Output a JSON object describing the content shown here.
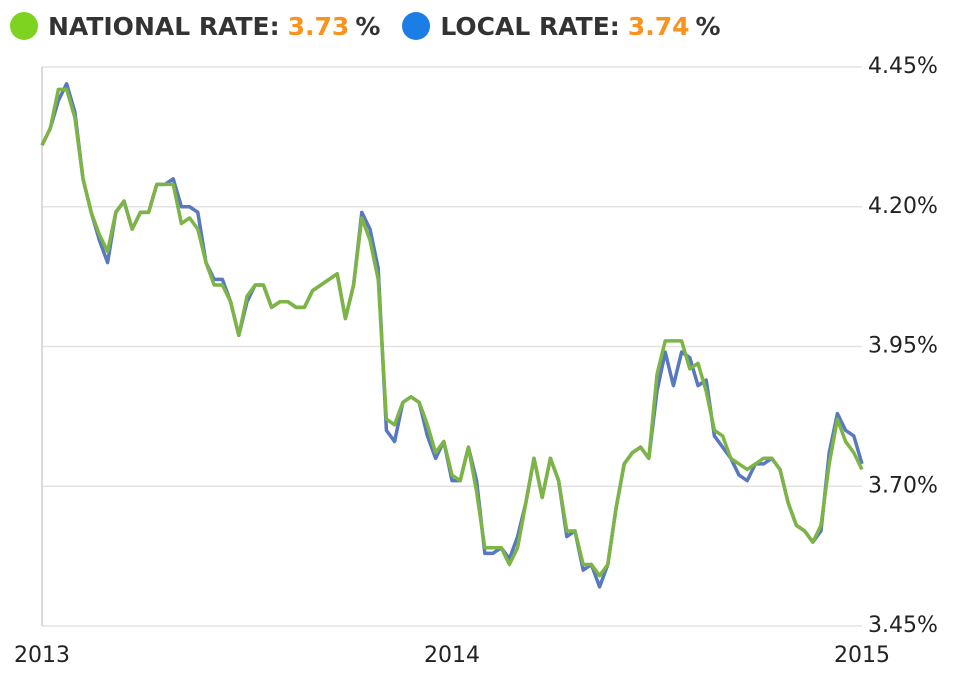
{
  "chart_data": {
    "type": "line",
    "current_unit": "%",
    "current_color": "#f7931e",
    "x": [
      2013,
      2013.02,
      2013.04,
      2013.06,
      2013.08,
      2013.1,
      2013.12,
      2013.14,
      2013.16,
      2013.18,
      2013.2,
      2013.22,
      2013.24,
      2013.26,
      2013.28,
      2013.3,
      2013.32,
      2013.34,
      2013.36,
      2013.38,
      2013.4,
      2013.42,
      2013.44,
      2013.46,
      2013.48,
      2013.5,
      2013.52,
      2013.54,
      2013.56,
      2013.58,
      2013.6,
      2013.62,
      2013.64,
      2013.66,
      2013.68,
      2013.7,
      2013.72,
      2013.74,
      2013.76,
      2013.78,
      2013.8,
      2013.82,
      2013.84,
      2013.86,
      2013.88,
      2013.9,
      2013.92,
      2013.94,
      2013.96,
      2013.98,
      2014,
      2014.02,
      2014.04,
      2014.06,
      2014.08,
      2014.1,
      2014.12,
      2014.14,
      2014.16,
      2014.18,
      2014.2,
      2014.22,
      2014.24,
      2014.26,
      2014.28,
      2014.3,
      2014.32,
      2014.34,
      2014.36,
      2014.38,
      2014.4,
      2014.42,
      2014.44,
      2014.46,
      2014.48,
      2014.5,
      2014.52,
      2014.54,
      2014.56,
      2014.58,
      2014.6,
      2014.62,
      2014.64,
      2014.66,
      2014.68,
      2014.7,
      2014.72,
      2014.74,
      2014.76,
      2014.78,
      2014.8,
      2014.82,
      2014.84,
      2014.86,
      2014.88,
      2014.9,
      2014.92,
      2014.94,
      2014.96,
      2014.98,
      2015
    ],
    "xlim": [
      2013,
      2015
    ],
    "xticks": [
      2013,
      2014,
      2015
    ],
    "ylim": [
      3.45,
      4.45
    ],
    "yticks": [
      {
        "value": 3.45,
        "label": "3.45%"
      },
      {
        "value": 3.7,
        "label": "3.70%"
      },
      {
        "value": 3.95,
        "label": "3.95%"
      },
      {
        "value": 4.2,
        "label": "4.20%"
      },
      {
        "value": 4.45,
        "label": "4.45%"
      }
    ],
    "grid": true,
    "series": [
      {
        "name": "NATIONAL RATE:",
        "color": "#7db544",
        "legend_color": "#7ed321",
        "current": 3.73,
        "values": [
          4.31,
          4.34,
          4.41,
          4.41,
          4.36,
          4.25,
          4.19,
          4.15,
          4.12,
          4.19,
          4.21,
          4.16,
          4.19,
          4.19,
          4.24,
          4.24,
          4.24,
          4.17,
          4.18,
          4.16,
          4.1,
          4.06,
          4.06,
          4.03,
          3.97,
          4.04,
          4.06,
          4.06,
          4.02,
          4.03,
          4.03,
          4.02,
          4.02,
          4.05,
          4.06,
          4.07,
          4.08,
          4.0,
          4.06,
          4.18,
          4.14,
          4.07,
          3.82,
          3.81,
          3.85,
          3.86,
          3.85,
          3.81,
          3.76,
          3.78,
          3.72,
          3.71,
          3.77,
          3.69,
          3.59,
          3.59,
          3.59,
          3.56,
          3.59,
          3.67,
          3.75,
          3.68,
          3.75,
          3.71,
          3.62,
          3.62,
          3.56,
          3.56,
          3.54,
          3.56,
          3.66,
          3.74,
          3.76,
          3.77,
          3.75,
          3.9,
          3.96,
          3.96,
          3.96,
          3.91,
          3.92,
          3.87,
          3.8,
          3.79,
          3.75,
          3.74,
          3.73,
          3.74,
          3.75,
          3.75,
          3.73,
          3.67,
          3.63,
          3.62,
          3.6,
          3.63,
          3.74,
          3.82,
          3.78,
          3.76,
          3.73
        ]
      },
      {
        "name": "LOCAL RATE:",
        "color": "#5878bf",
        "legend_color": "#1b7ee6",
        "current": 3.74,
        "values": [
          4.31,
          4.34,
          4.39,
          4.42,
          4.37,
          4.25,
          4.19,
          4.14,
          4.1,
          4.19,
          4.21,
          4.16,
          4.19,
          4.19,
          4.24,
          4.24,
          4.25,
          4.2,
          4.2,
          4.19,
          4.1,
          4.07,
          4.07,
          4.03,
          3.97,
          4.03,
          4.06,
          4.06,
          4.02,
          4.03,
          4.03,
          4.02,
          4.02,
          4.05,
          4.06,
          4.07,
          4.08,
          4.0,
          4.06,
          4.19,
          4.16,
          4.09,
          3.8,
          3.78,
          3.85,
          3.86,
          3.85,
          3.79,
          3.75,
          3.78,
          3.71,
          3.71,
          3.77,
          3.71,
          3.58,
          3.58,
          3.59,
          3.57,
          3.61,
          3.67,
          3.75,
          3.68,
          3.75,
          3.71,
          3.61,
          3.62,
          3.55,
          3.56,
          3.52,
          3.56,
          3.66,
          3.74,
          3.76,
          3.77,
          3.75,
          3.87,
          3.94,
          3.88,
          3.94,
          3.93,
          3.88,
          3.89,
          3.79,
          3.77,
          3.75,
          3.72,
          3.71,
          3.74,
          3.74,
          3.75,
          3.73,
          3.67,
          3.63,
          3.62,
          3.6,
          3.62,
          3.76,
          3.83,
          3.8,
          3.79,
          3.74
        ]
      }
    ]
  }
}
